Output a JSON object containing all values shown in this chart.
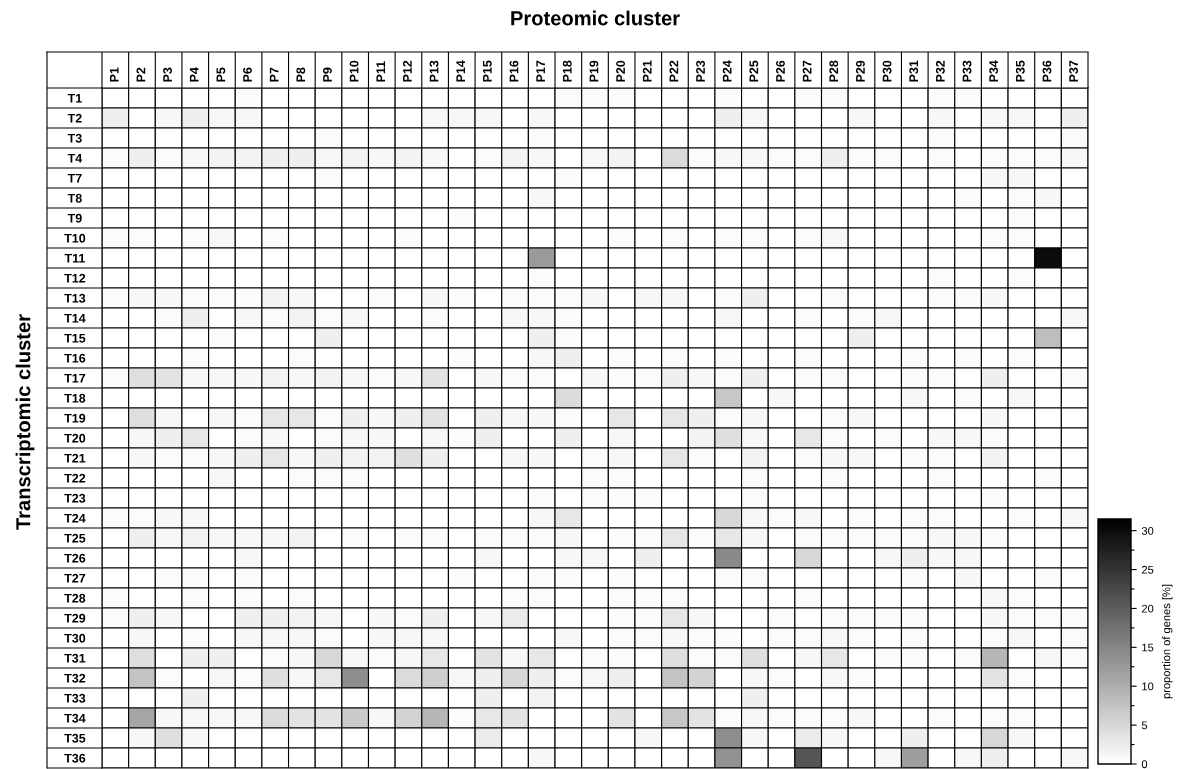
{
  "chart_data": {
    "type": "heatmap",
    "xlabel": "Proteomic cluster",
    "ylabel": "Transcriptomic cluster",
    "clabel": "proportion of genes [%]",
    "categories": [
      "P1",
      "P2",
      "P3",
      "P4",
      "P5",
      "P6",
      "P7",
      "P8",
      "P9",
      "P10",
      "P11",
      "P12",
      "P13",
      "P14",
      "P15",
      "P16",
      "P17",
      "P18",
      "P19",
      "P20",
      "P21",
      "P22",
      "P23",
      "P24",
      "P25",
      "P26",
      "P27",
      "P28",
      "P29",
      "P30",
      "P31",
      "P32",
      "P33",
      "P34",
      "P35",
      "P36",
      "P37"
    ],
    "y_categories": [
      "T1",
      "T2",
      "T3",
      "T4",
      "T7",
      "T8",
      "T9",
      "T10",
      "T11",
      "T12",
      "T13",
      "T14",
      "T15",
      "T16",
      "T17",
      "T18",
      "T19",
      "T20",
      "T21",
      "T22",
      "T23",
      "T24",
      "T25",
      "T26",
      "T27",
      "T28",
      "T29",
      "T30",
      "T31",
      "T32",
      "T33",
      "T34",
      "T35",
      "T36"
    ],
    "cells": [
      [
        0,
        0,
        0,
        0,
        0,
        0.5,
        0,
        0,
        0,
        0,
        0,
        0,
        0,
        0,
        0,
        0,
        0,
        0.5,
        0.5,
        0.5,
        0,
        0,
        0,
        0.5,
        0,
        0,
        0.5,
        0.5,
        0,
        0,
        0,
        0.5,
        0.5,
        0,
        0,
        0,
        0
      ],
      [
        2,
        0,
        1,
        2,
        1,
        1,
        0,
        0,
        0,
        0,
        0,
        0,
        1,
        1,
        1,
        0,
        1,
        0,
        0,
        0,
        0,
        0,
        0,
        2,
        1,
        0,
        0,
        0,
        1,
        0,
        0,
        1,
        0,
        1,
        1,
        0,
        2
      ],
      [
        0,
        0,
        0,
        0,
        0,
        0,
        0,
        0,
        0.5,
        0,
        0,
        0,
        0,
        0,
        0,
        0,
        0.5,
        0,
        0,
        0,
        0,
        0,
        0,
        0,
        0,
        0,
        0,
        0,
        0,
        0,
        0,
        0.5,
        0,
        0,
        0,
        0,
        0.5
      ],
      [
        0.5,
        2,
        0.5,
        1,
        1.5,
        1.5,
        2,
        2,
        1,
        1.5,
        1,
        1.5,
        1,
        0,
        0.5,
        1.5,
        1,
        0,
        1,
        1.5,
        0,
        4.5,
        0.5,
        1,
        1,
        0.5,
        0.5,
        2,
        0.5,
        0.5,
        0,
        0.5,
        0,
        0.5,
        0.5,
        0.5,
        1
      ],
      [
        0,
        0,
        0,
        0,
        0,
        0,
        0,
        0,
        0.5,
        0,
        0,
        0,
        0,
        0,
        0,
        0,
        0,
        0.5,
        0,
        0,
        0,
        0,
        0,
        0,
        0,
        0,
        0,
        0,
        0,
        0,
        0,
        0,
        0,
        1,
        1,
        0,
        0
      ],
      [
        0,
        0,
        0,
        0,
        0,
        0,
        0,
        0,
        0,
        0,
        0,
        0,
        0,
        0,
        0,
        0,
        1,
        0,
        0,
        0,
        0,
        0,
        0,
        0,
        0,
        0,
        0,
        0,
        0,
        0,
        0,
        0,
        0.5,
        0,
        0.5,
        1,
        0
      ],
      [
        0,
        0,
        0,
        0,
        0,
        0,
        0,
        0,
        0,
        0,
        0,
        0,
        0,
        0.5,
        0,
        0,
        0,
        0,
        0,
        0,
        0,
        0,
        0,
        0,
        0,
        0,
        0,
        0,
        0,
        0,
        0,
        0,
        0,
        0,
        0.5,
        0,
        0
      ],
      [
        0.5,
        0.5,
        0,
        0.5,
        1,
        0,
        0.5,
        0,
        0,
        0,
        0,
        0.5,
        0,
        0,
        0,
        0,
        0,
        0,
        0,
        0.5,
        0,
        0.5,
        0,
        0.5,
        0.5,
        0,
        0.5,
        1,
        0,
        0,
        0,
        0,
        0,
        0.5,
        0.5,
        0,
        0
      ],
      [
        0,
        0,
        0,
        0,
        0,
        0,
        0,
        0,
        0,
        0,
        0,
        0,
        0,
        0,
        0,
        0,
        12.5,
        0,
        0,
        0,
        0,
        0,
        0,
        0,
        0,
        0,
        0,
        0,
        0,
        0,
        0,
        0,
        0,
        0,
        0,
        30,
        0
      ],
      [
        0,
        0,
        0,
        0,
        0,
        0,
        0,
        0,
        0,
        0,
        0,
        0,
        0,
        0,
        0,
        0,
        0.5,
        0,
        0,
        0,
        0,
        0,
        0,
        0,
        0,
        0,
        0,
        0,
        0,
        0,
        0,
        0.5,
        0,
        0,
        0.5,
        0,
        0
      ],
      [
        0.5,
        1,
        1,
        0.5,
        0.5,
        0.5,
        1.5,
        1,
        0,
        0,
        0.5,
        0,
        1,
        0.5,
        0,
        0.5,
        0.5,
        0.5,
        1,
        0,
        1,
        1,
        0,
        0.5,
        2,
        0,
        0,
        0.5,
        0,
        0,
        0,
        0.5,
        0.5,
        1,
        0,
        0,
        0
      ],
      [
        0,
        0,
        0.5,
        2,
        0,
        1,
        0.5,
        1.5,
        0.5,
        1,
        0,
        0,
        0.5,
        0,
        0,
        1,
        1,
        0.5,
        0,
        0,
        0,
        0,
        0,
        1,
        0,
        0,
        0.5,
        0,
        0.5,
        1,
        0,
        0,
        0,
        0,
        0,
        0,
        1
      ],
      [
        0,
        0,
        0,
        0,
        0.5,
        0,
        0,
        0,
        2,
        0,
        0,
        0,
        0,
        0,
        0,
        0,
        2,
        0.5,
        0,
        0,
        0,
        0,
        0,
        0,
        0,
        0,
        0,
        0,
        2,
        0,
        0,
        0,
        0,
        0,
        0,
        8,
        0
      ],
      [
        0,
        0,
        0,
        0.5,
        0,
        0,
        0,
        0.5,
        0,
        0,
        0,
        0,
        0,
        0.5,
        0,
        0,
        1,
        2,
        0,
        0.5,
        0,
        0.5,
        0,
        0.5,
        0,
        0,
        0.5,
        0,
        0,
        0,
        0.5,
        0,
        0.5,
        0,
        0.5,
        0,
        0
      ],
      [
        0.5,
        4,
        3.5,
        1,
        1,
        1,
        1.5,
        1,
        1.5,
        1,
        0.5,
        1,
        3.5,
        0,
        1,
        0.5,
        0.5,
        0,
        1,
        0.5,
        0.5,
        2,
        1,
        0.5,
        2,
        0,
        0.5,
        0.5,
        0,
        0,
        0.5,
        0.5,
        0,
        2,
        0,
        0,
        0.5
      ],
      [
        0,
        0,
        0,
        0,
        0,
        0,
        0,
        0,
        0,
        0,
        0,
        0,
        0,
        0,
        0,
        0,
        0,
        4.5,
        0,
        0,
        0,
        0,
        0,
        7,
        0,
        1,
        0,
        0,
        0,
        0,
        1,
        0,
        0.5,
        0,
        1,
        0,
        0
      ],
      [
        0,
        4,
        1,
        0,
        1,
        0.5,
        3,
        3,
        0.5,
        2,
        1,
        2,
        3.5,
        0,
        2,
        1,
        1,
        0.5,
        0,
        3,
        0,
        3,
        2,
        0.5,
        1,
        0,
        0,
        0.5,
        1,
        0,
        0,
        0,
        0,
        1,
        0,
        0,
        0
      ],
      [
        0,
        1,
        2,
        3,
        0,
        0.5,
        1,
        0,
        0.5,
        1,
        1,
        0,
        1,
        0.5,
        2,
        0,
        0,
        2,
        0,
        1,
        0,
        0,
        1.5,
        4,
        1,
        0,
        3,
        0.5,
        0,
        0.5,
        0,
        1,
        1,
        0.5,
        0,
        0,
        0
      ],
      [
        0,
        1,
        0.5,
        0.5,
        1,
        2,
        3,
        1,
        2,
        1.5,
        1.5,
        4,
        2,
        0,
        0,
        1,
        1,
        0,
        0.5,
        1,
        0,
        3,
        0.5,
        0,
        1.5,
        0,
        0.5,
        1,
        1,
        0,
        0.5,
        0.5,
        0,
        1.5,
        0,
        0,
        0
      ],
      [
        0,
        0,
        0,
        0,
        1,
        0,
        0,
        0.5,
        0.5,
        0.5,
        0,
        0,
        0,
        0,
        0,
        0,
        0,
        0,
        0.5,
        0.5,
        0,
        0,
        0,
        0,
        0.5,
        0,
        0,
        0.5,
        0,
        0,
        0,
        0.5,
        0,
        0,
        0,
        0.5,
        0
      ],
      [
        0,
        0,
        0,
        0,
        0,
        0,
        0,
        0,
        0,
        0,
        0,
        0,
        0,
        0,
        0,
        0,
        0.5,
        0,
        0.5,
        0.5,
        0.5,
        0,
        0,
        0,
        0.5,
        0,
        0,
        0,
        0,
        0,
        0,
        0,
        0,
        0.5,
        0,
        0,
        0
      ],
      [
        0.5,
        0.5,
        1,
        1,
        0,
        0,
        0,
        0,
        0,
        0,
        0,
        0,
        0,
        0,
        0,
        0,
        1,
        3,
        0,
        0,
        0,
        0,
        0,
        5,
        1,
        0.5,
        1,
        0,
        0.5,
        0,
        0.5,
        0.5,
        0,
        0,
        0.5,
        0,
        1
      ],
      [
        0,
        2,
        1,
        1.5,
        1,
        1,
        1,
        1.5,
        0,
        0.5,
        0,
        0.5,
        0.5,
        0,
        0.5,
        0.5,
        0.5,
        1,
        0,
        0.5,
        0.5,
        3,
        0.5,
        3,
        1,
        0,
        0.5,
        0.5,
        0.5,
        0.5,
        0.5,
        1,
        1,
        0.5,
        0,
        0,
        0
      ],
      [
        0,
        0,
        0,
        0,
        0,
        1,
        0,
        0,
        0,
        0,
        0,
        0,
        0,
        0,
        1,
        0,
        0,
        1,
        1,
        0,
        2,
        0,
        0,
        14.5,
        0,
        0,
        5,
        0,
        0,
        1,
        2,
        1,
        1,
        0,
        0,
        0,
        0
      ],
      [
        0,
        0,
        0.5,
        0.5,
        0,
        0.5,
        0,
        0,
        0,
        0,
        0,
        0,
        0,
        0.5,
        0,
        0,
        0.5,
        0.5,
        0,
        0.5,
        0,
        0,
        0,
        0.5,
        0.5,
        0,
        0,
        0,
        0,
        0,
        0.5,
        0,
        1,
        0,
        0,
        0.5,
        0
      ],
      [
        0.5,
        0,
        0,
        0.5,
        0,
        0.5,
        0,
        0.5,
        0,
        0,
        0,
        0,
        0,
        0,
        0,
        0.5,
        0.5,
        0,
        0,
        0.5,
        0.5,
        0.5,
        0,
        0,
        0,
        0,
        0.5,
        0,
        0,
        0,
        0,
        0,
        0,
        1,
        0.5,
        0,
        0
      ],
      [
        0.5,
        2,
        1,
        0,
        0,
        2,
        2,
        1.5,
        1,
        0,
        1,
        0.5,
        2,
        0,
        1,
        2.5,
        0,
        0,
        0,
        0.5,
        0.5,
        3,
        1,
        0,
        0,
        0.5,
        0,
        0.5,
        0.5,
        0.5,
        0.5,
        0,
        0,
        1,
        0.5,
        0.5,
        0.5
      ],
      [
        0,
        1,
        0,
        0.5,
        0,
        1,
        1,
        1,
        0.5,
        0,
        1,
        1,
        1,
        0,
        0,
        0,
        0,
        1,
        0,
        0.5,
        0.5,
        1,
        0.5,
        0.5,
        0,
        0.5,
        0.5,
        1,
        0.5,
        0,
        0.5,
        0,
        0,
        0.5,
        1,
        0,
        0.5
      ],
      [
        0,
        4,
        0,
        2,
        2,
        0,
        0.5,
        1,
        5,
        1,
        0.5,
        1,
        3,
        0,
        3.5,
        1,
        3,
        0,
        0.5,
        0.5,
        0,
        4,
        0.5,
        0.5,
        4,
        0,
        1,
        3,
        0,
        0.5,
        0.5,
        0,
        0.5,
        9,
        0,
        1,
        0.5
      ],
      [
        0,
        7.5,
        0.5,
        0,
        1,
        0.5,
        4,
        1,
        3,
        14,
        0,
        4.5,
        6,
        1,
        2,
        5,
        2,
        0.5,
        1,
        2,
        0,
        7.5,
        5.5,
        0,
        1,
        0.5,
        0,
        1,
        0.5,
        0,
        0,
        0,
        0,
        3.5,
        0.5,
        0,
        0
      ],
      [
        0,
        0,
        0,
        2,
        0,
        0,
        0,
        0,
        0,
        0,
        0,
        0,
        0,
        0,
        2,
        0,
        1.5,
        0,
        0,
        0,
        0,
        0,
        0,
        0,
        2,
        0,
        0,
        0,
        0,
        0,
        0,
        0,
        0,
        0,
        0,
        0,
        0
      ],
      [
        0,
        11,
        1,
        1,
        1,
        1,
        4.5,
        3.5,
        3.5,
        6.5,
        1,
        5.5,
        9,
        0.5,
        3,
        3.5,
        0,
        0,
        0,
        3.5,
        0,
        7,
        3.5,
        0.5,
        1,
        0.5,
        0.5,
        0.5,
        1,
        0,
        0,
        0.5,
        0,
        0.5,
        0.5,
        0,
        0
      ],
      [
        0,
        1,
        4,
        1,
        0,
        0,
        0,
        0,
        0,
        0,
        0,
        0,
        0,
        0,
        2.5,
        0,
        0,
        0,
        0,
        0,
        1,
        0,
        0,
        14,
        1,
        0,
        2.5,
        1,
        0,
        0,
        2,
        0,
        0,
        5,
        1,
        0,
        0
      ],
      [
        0,
        0,
        0,
        0,
        0,
        0,
        0,
        0,
        0,
        0,
        0,
        0,
        0,
        0,
        0,
        0,
        1,
        0,
        0,
        0,
        0,
        0,
        0,
        13.5,
        0,
        0,
        21,
        0,
        0,
        1,
        12,
        0,
        1,
        2,
        0,
        0,
        1
      ]
    ],
    "clim": [
      0,
      31.5
    ],
    "cticks": [
      0,
      {
        "value": 2.5,
        "label": null
      },
      5,
      {
        "value": 7.5,
        "label": null
      },
      10,
      {
        "value": 12.5,
        "label": null
      },
      15,
      {
        "value": 17.5,
        "label": null
      },
      20,
      {
        "value": 22.5,
        "label": null
      },
      25,
      {
        "value": 27.5,
        "label": null
      },
      30
    ]
  }
}
